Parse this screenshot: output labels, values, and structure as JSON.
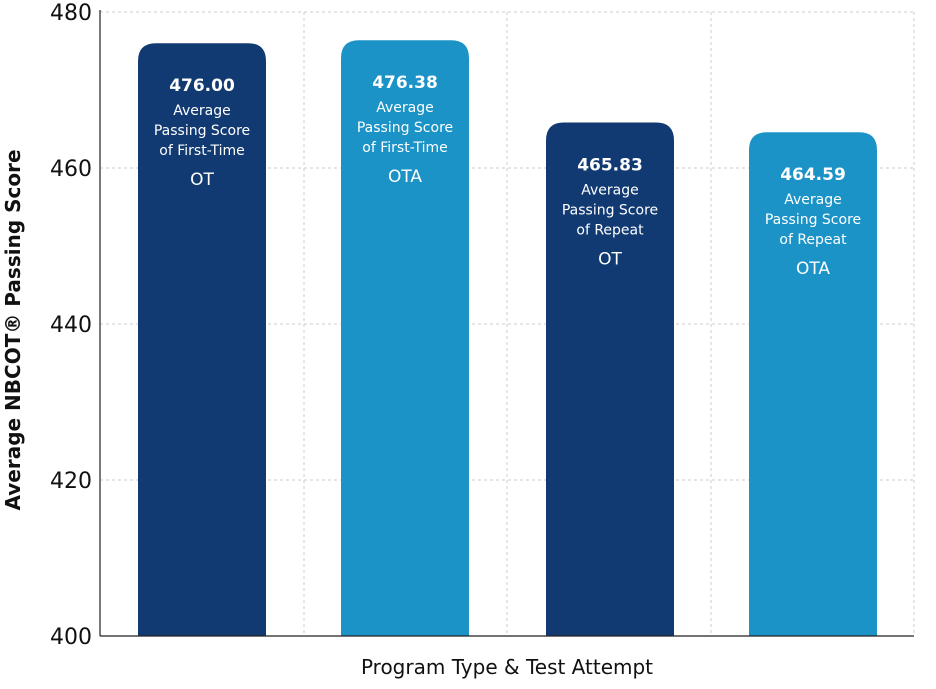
{
  "colors": {
    "ot": "#123a72",
    "ota": "#1b93c7",
    "grid": "#cccccc",
    "axis": "#222222",
    "text": "#111111"
  },
  "chart_data": {
    "type": "bar",
    "title": "",
    "xlabel": "Program Type & Test Attempt",
    "ylabel": "Average NBCOT® Passing Score",
    "ylim": [
      400,
      480
    ],
    "yticks": [
      400,
      420,
      440,
      460,
      480
    ],
    "grid": true,
    "bars": [
      {
        "value": 476.0,
        "value_label": "476.00",
        "lines": [
          "Average",
          "Passing Score",
          "of First-Time"
        ],
        "program": "OT",
        "color": "#123a72"
      },
      {
        "value": 476.38,
        "value_label": "476.38",
        "lines": [
          "Average",
          "Passing Score",
          "of First-Time"
        ],
        "program": "OTA",
        "color": "#1b93c7"
      },
      {
        "value": 465.83,
        "value_label": "465.83",
        "lines": [
          "Average",
          "Passing Score",
          "of Repeat"
        ],
        "program": "OT",
        "color": "#123a72"
      },
      {
        "value": 464.59,
        "value_label": "464.59",
        "lines": [
          "Average",
          "Passing Score",
          "of Repeat"
        ],
        "program": "OTA",
        "color": "#1b93c7"
      }
    ]
  }
}
